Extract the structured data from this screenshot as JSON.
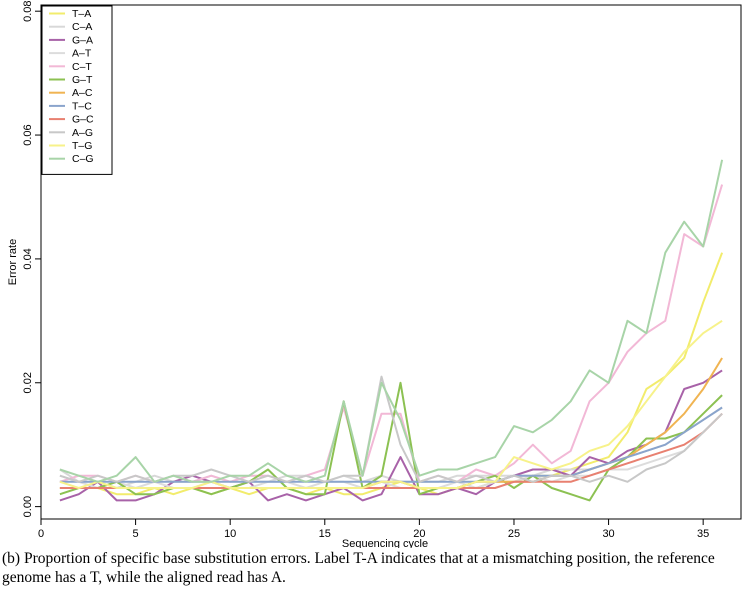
{
  "chart_data": {
    "type": "line",
    "xlabel": "Sequencing cycle",
    "ylabel": "Error rate",
    "xlim": [
      0,
      37
    ],
    "ylim": [
      -0.002,
      0.081
    ],
    "xticks": [
      0,
      5,
      10,
      15,
      20,
      25,
      30,
      35
    ],
    "yticks": [
      0.0,
      0.02,
      0.04,
      0.06,
      0.08
    ],
    "ytick_labels": [
      "0.00",
      "0.02",
      "0.04",
      "0.06",
      "0.08"
    ],
    "grid": false,
    "legend_position": "top-left",
    "x": [
      1,
      2,
      3,
      4,
      5,
      6,
      7,
      8,
      9,
      10,
      11,
      12,
      13,
      14,
      15,
      16,
      17,
      18,
      19,
      20,
      21,
      22,
      23,
      24,
      25,
      26,
      27,
      28,
      29,
      30,
      31,
      32,
      33,
      34,
      35,
      36
    ],
    "series": [
      {
        "name": "T–A",
        "color": "#f2ec6c",
        "values": [
          0.003,
          0.003,
          0.003,
          0.002,
          0.002,
          0.003,
          0.002,
          0.003,
          0.002,
          0.003,
          0.002,
          0.003,
          0.003,
          0.002,
          0.003,
          0.002,
          0.002,
          0.003,
          0.004,
          0.003,
          0.002,
          0.003,
          0.003,
          0.004,
          0.004,
          0.005,
          0.005,
          0.006,
          0.007,
          0.008,
          0.012,
          0.019,
          0.021,
          0.024,
          0.033,
          0.041
        ]
      },
      {
        "name": "C–A",
        "color": "#d8d8d8",
        "values": [
          0.006,
          0.004,
          0.004,
          0.003,
          0.004,
          0.005,
          0.004,
          0.004,
          0.005,
          0.004,
          0.004,
          0.004,
          0.005,
          0.005,
          0.004,
          0.005,
          0.004,
          0.005,
          0.004,
          0.004,
          0.004,
          0.005,
          0.005,
          0.005,
          0.005,
          0.005,
          0.006,
          0.006,
          0.006,
          0.007,
          0.008,
          0.009,
          0.01,
          0.012,
          0.014,
          0.016
        ]
      },
      {
        "name": "G–A",
        "color": "#a862a8",
        "values": [
          0.001,
          0.002,
          0.004,
          0.001,
          0.001,
          0.002,
          0.004,
          0.005,
          0.004,
          0.003,
          0.004,
          0.001,
          0.002,
          0.001,
          0.002,
          0.003,
          0.001,
          0.002,
          0.008,
          0.002,
          0.002,
          0.003,
          0.002,
          0.004,
          0.005,
          0.006,
          0.006,
          0.005,
          0.008,
          0.007,
          0.009,
          0.01,
          0.012,
          0.019,
          0.02,
          0.022
        ]
      },
      {
        "name": "A–T",
        "color": "#dcdcdc",
        "values": [
          0.005,
          0.004,
          0.003,
          0.004,
          0.003,
          0.004,
          0.003,
          0.003,
          0.004,
          0.003,
          0.003,
          0.004,
          0.004,
          0.003,
          0.004,
          0.004,
          0.003,
          0.004,
          0.003,
          0.003,
          0.003,
          0.004,
          0.003,
          0.004,
          0.004,
          0.005,
          0.004,
          0.005,
          0.005,
          0.006,
          0.006,
          0.007,
          0.008,
          0.009,
          0.012,
          0.015
        ]
      },
      {
        "name": "C–T",
        "color": "#f2b8d6",
        "values": [
          0.004,
          0.005,
          0.005,
          0.004,
          0.005,
          0.004,
          0.005,
          0.004,
          0.005,
          0.004,
          0.005,
          0.005,
          0.004,
          0.005,
          0.006,
          0.016,
          0.005,
          0.015,
          0.015,
          0.004,
          0.005,
          0.004,
          0.006,
          0.005,
          0.007,
          0.01,
          0.007,
          0.009,
          0.017,
          0.02,
          0.025,
          0.028,
          0.03,
          0.044,
          0.042,
          0.052
        ]
      },
      {
        "name": "G–T",
        "color": "#8cc152",
        "values": [
          0.002,
          0.003,
          0.003,
          0.004,
          0.002,
          0.002,
          0.003,
          0.003,
          0.002,
          0.003,
          0.004,
          0.006,
          0.003,
          0.002,
          0.002,
          0.017,
          0.003,
          0.005,
          0.02,
          0.002,
          0.003,
          0.003,
          0.004,
          0.005,
          0.003,
          0.005,
          0.003,
          0.002,
          0.001,
          0.006,
          0.008,
          0.011,
          0.011,
          0.012,
          0.015,
          0.018
        ]
      },
      {
        "name": "A–C",
        "color": "#f0b452",
        "values": [
          0.003,
          0.003,
          0.003,
          0.003,
          0.003,
          0.003,
          0.003,
          0.003,
          0.003,
          0.003,
          0.003,
          0.003,
          0.003,
          0.003,
          0.003,
          0.003,
          0.003,
          0.004,
          0.004,
          0.003,
          0.003,
          0.003,
          0.004,
          0.004,
          0.004,
          0.004,
          0.005,
          0.005,
          0.006,
          0.007,
          0.008,
          0.01,
          0.012,
          0.015,
          0.019,
          0.024
        ]
      },
      {
        "name": "T–C",
        "color": "#8aa4cc",
        "values": [
          0.004,
          0.004,
          0.004,
          0.004,
          0.004,
          0.004,
          0.004,
          0.004,
          0.004,
          0.004,
          0.004,
          0.004,
          0.004,
          0.004,
          0.004,
          0.004,
          0.004,
          0.004,
          0.004,
          0.004,
          0.004,
          0.004,
          0.004,
          0.004,
          0.005,
          0.005,
          0.005,
          0.005,
          0.006,
          0.007,
          0.008,
          0.009,
          0.01,
          0.012,
          0.014,
          0.016
        ]
      },
      {
        "name": "G–C",
        "color": "#e88070",
        "values": [
          0.003,
          0.003,
          0.003,
          0.003,
          0.003,
          0.003,
          0.003,
          0.003,
          0.003,
          0.003,
          0.003,
          0.003,
          0.003,
          0.003,
          0.003,
          0.003,
          0.003,
          0.003,
          0.003,
          0.003,
          0.003,
          0.003,
          0.003,
          0.003,
          0.004,
          0.004,
          0.004,
          0.004,
          0.005,
          0.006,
          0.007,
          0.008,
          0.009,
          0.01,
          0.012,
          0.015
        ]
      },
      {
        "name": "A–G",
        "color": "#c8c8c8",
        "values": [
          0.005,
          0.004,
          0.005,
          0.004,
          0.005,
          0.004,
          0.005,
          0.005,
          0.006,
          0.005,
          0.004,
          0.005,
          0.004,
          0.005,
          0.004,
          0.005,
          0.005,
          0.021,
          0.01,
          0.004,
          0.005,
          0.004,
          0.005,
          0.004,
          0.005,
          0.004,
          0.005,
          0.005,
          0.004,
          0.005,
          0.004,
          0.006,
          0.007,
          0.009,
          0.012,
          0.015
        ]
      },
      {
        "name": "T–G",
        "color": "#f7f28a",
        "values": [
          0.004,
          0.003,
          0.004,
          0.003,
          0.003,
          0.003,
          0.003,
          0.003,
          0.004,
          0.003,
          0.003,
          0.003,
          0.003,
          0.003,
          0.003,
          0.003,
          0.003,
          0.004,
          0.004,
          0.003,
          0.003,
          0.003,
          0.004,
          0.004,
          0.008,
          0.007,
          0.006,
          0.007,
          0.009,
          0.01,
          0.013,
          0.017,
          0.021,
          0.025,
          0.028,
          0.03
        ]
      },
      {
        "name": "C–G",
        "color": "#a8d4a8",
        "values": [
          0.006,
          0.005,
          0.004,
          0.005,
          0.008,
          0.004,
          0.005,
          0.004,
          0.004,
          0.005,
          0.005,
          0.007,
          0.005,
          0.004,
          0.005,
          0.017,
          0.005,
          0.02,
          0.014,
          0.005,
          0.006,
          0.006,
          0.007,
          0.008,
          0.013,
          0.012,
          0.014,
          0.017,
          0.022,
          0.02,
          0.03,
          0.028,
          0.041,
          0.046,
          0.042,
          0.056
        ]
      }
    ]
  },
  "caption": "(b) Proportion of specific base substitution errors. Label T-A indicates that at a mismatching position, the reference genome has a T, while the aligned read has A."
}
